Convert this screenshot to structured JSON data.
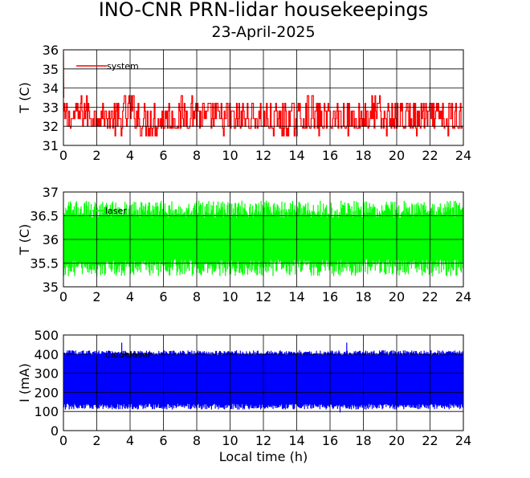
{
  "title": "INO-CNR PRN-lidar housekeepings",
  "subtitle": "23-April-2025",
  "chart_data": [
    {
      "type": "line",
      "ylabel": "T (C)",
      "xlabel": "",
      "xlim": [
        0,
        24
      ],
      "ylim": [
        31,
        36
      ],
      "xticks": [
        "0",
        "2",
        "4",
        "6",
        "8",
        "10",
        "12",
        "14",
        "16",
        "18",
        "20",
        "22",
        "24"
      ],
      "yticks": [
        "31",
        "32",
        "33",
        "34",
        "35",
        "36"
      ],
      "grid": true,
      "legend_position": "top-left",
      "series": [
        {
          "name": "system",
          "color": "#ff0000",
          "description": "temperature switching between ~31.5 and ~33.6 C throughout the day",
          "x": [
            0,
            0.5,
            1,
            1.5,
            2,
            2.5,
            3,
            3.5,
            4,
            4.5,
            5,
            5.5,
            6,
            6.5,
            7,
            7.5,
            8,
            8.5,
            9,
            9.5,
            10,
            10.5,
            11,
            11.5,
            12,
            12.5,
            13,
            13.5,
            14,
            14.5,
            15,
            15.5,
            16,
            16.5,
            17,
            17.5,
            18,
            18.5,
            19,
            19.5,
            20,
            20.5,
            21,
            21.5,
            22,
            22.5,
            23,
            23.5,
            24
          ],
          "y_min": [
            31.9,
            31.9,
            32.0,
            31.9,
            32.0,
            31.9,
            31.5,
            31.5,
            32.0,
            31.5,
            31.5,
            31.5,
            31.5,
            31.9,
            31.5,
            31.9,
            32.0,
            31.5,
            31.9,
            31.5,
            31.5,
            31.5,
            31.9,
            31.9,
            31.5,
            31.5,
            31.5,
            31.5,
            31.5,
            31.9,
            31.5,
            31.5,
            31.9,
            31.9,
            31.5,
            31.5,
            31.9,
            31.9,
            31.5,
            31.5,
            31.9,
            31.9,
            31.5,
            31.5,
            31.9,
            31.5,
            31.5,
            31.5,
            31.9
          ],
          "y_max": [
            33.5,
            33.5,
            33.6,
            33.6,
            33.2,
            33.2,
            33.2,
            33.6,
            33.6,
            33.6,
            33.2,
            33.2,
            33.2,
            33.2,
            33.6,
            33.6,
            33.6,
            33.2,
            33.2,
            33.2,
            33.2,
            33.2,
            33.2,
            33.2,
            33.2,
            33.2,
            33.2,
            33.2,
            33.2,
            33.6,
            33.6,
            33.2,
            33.2,
            33.2,
            33.2,
            33.2,
            33.6,
            33.6,
            33.6,
            33.2,
            33.2,
            33.2,
            33.2,
            33.2,
            33.2,
            33.2,
            33.2,
            33.2,
            33.2
          ]
        }
      ]
    },
    {
      "type": "line",
      "ylabel": "T (C)",
      "xlabel": "",
      "xlim": [
        0,
        24
      ],
      "ylim": [
        35,
        37
      ],
      "xticks": [
        "0",
        "2",
        "4",
        "6",
        "8",
        "10",
        "12",
        "14",
        "16",
        "18",
        "20",
        "22",
        "24"
      ],
      "yticks": [
        "35",
        "35.5",
        "36",
        "36.5",
        "37"
      ],
      "grid": true,
      "legend_position": "top-left",
      "series": [
        {
          "name": "laser",
          "color": "#00ff00",
          "description": "temperature oscillating between ~35.2 and ~36.8 C",
          "y_low": 35.22,
          "y_high": 36.82
        }
      ]
    },
    {
      "type": "line",
      "ylabel": "I (mA)",
      "xlabel": "Local time (h)",
      "xlim": [
        0,
        24
      ],
      "ylim": [
        0,
        500
      ],
      "xticks": [
        "0",
        "2",
        "4",
        "6",
        "8",
        "10",
        "12",
        "14",
        "16",
        "18",
        "20",
        "22",
        "24"
      ],
      "yticks": [
        "0",
        "100",
        "200",
        "300",
        "400",
        "500"
      ],
      "grid": true,
      "legend_position": "top-left",
      "series": [
        {
          "name": "diodelaser",
          "color": "#0000ff",
          "description": "current fluctuating between ~110 and ~420 mA with occasional spikes up to ~460 mA",
          "y_low": 110,
          "y_high": 420,
          "spikes": [
            {
              "x": 3.5,
              "y": 460
            },
            {
              "x": 17.0,
              "y": 460
            },
            {
              "x": 16.6,
              "y": 95
            }
          ]
        }
      ]
    }
  ]
}
